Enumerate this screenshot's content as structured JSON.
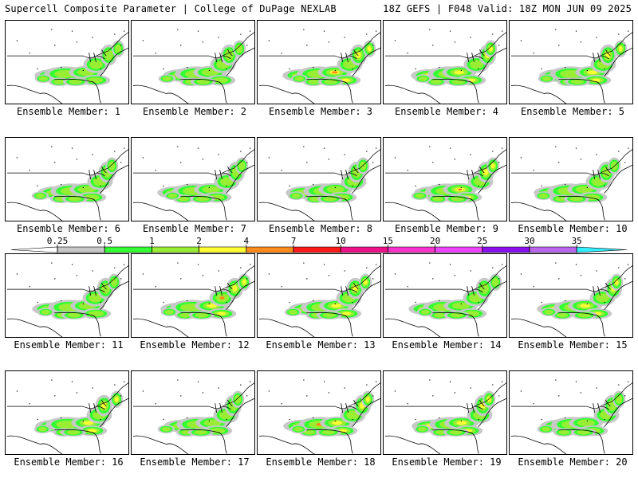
{
  "header": {
    "title_left": "Supercell Composite Parameter | College of DuPage NEXLAB",
    "title_right": "18Z GEFS | F048 Valid: 18Z MON JUN 09 2025"
  },
  "members": [
    {
      "label": "Ensemble Member: 1",
      "intensity": 0.55
    },
    {
      "label": "Ensemble Member: 2",
      "intensity": 0.45
    },
    {
      "label": "Ensemble Member: 3",
      "intensity": 0.75
    },
    {
      "label": "Ensemble Member: 4",
      "intensity": 0.7
    },
    {
      "label": "Ensemble Member: 5",
      "intensity": 0.65
    },
    {
      "label": "Ensemble Member: 6",
      "intensity": 0.6
    },
    {
      "label": "Ensemble Member: 7",
      "intensity": 0.4
    },
    {
      "label": "Ensemble Member: 8",
      "intensity": 0.6
    },
    {
      "label": "Ensemble Member: 9",
      "intensity": 0.85
    },
    {
      "label": "Ensemble Member: 10",
      "intensity": 0.55
    },
    {
      "label": "Ensemble Member: 11",
      "intensity": 0.55
    },
    {
      "label": "Ensemble Member: 12",
      "intensity": 0.8
    },
    {
      "label": "Ensemble Member: 13",
      "intensity": 0.75
    },
    {
      "label": "Ensemble Member: 14",
      "intensity": 0.55
    },
    {
      "label": "Ensemble Member: 15",
      "intensity": 0.7
    },
    {
      "label": "Ensemble Member: 16",
      "intensity": 0.7
    },
    {
      "label": "Ensemble Member: 17",
      "intensity": 0.6
    },
    {
      "label": "Ensemble Member: 18",
      "intensity": 0.75
    },
    {
      "label": "Ensemble Member: 19",
      "intensity": 0.65
    },
    {
      "label": "Ensemble Member: 20",
      "intensity": 0.6
    }
  ],
  "colorbar": {
    "bins": [
      {
        "color": "#c8c8c8"
      },
      {
        "color": "#33ff33"
      },
      {
        "color": "#99ee33"
      },
      {
        "color": "#ffff33"
      },
      {
        "color": "#ff8c1a"
      },
      {
        "color": "#ff1a1a"
      },
      {
        "color": "#ee1188"
      },
      {
        "color": "#ff33cc"
      },
      {
        "color": "#ee44ff"
      },
      {
        "color": "#8811ee"
      },
      {
        "color": "#bb66ee"
      },
      {
        "color": "#33eeff"
      }
    ],
    "left_arrow_color": "#ffffff",
    "tick_labels": [
      "0.25",
      "0.5",
      "1",
      "2",
      "4",
      "7",
      "10",
      "15",
      "20",
      "25",
      "30",
      "35"
    ]
  }
}
